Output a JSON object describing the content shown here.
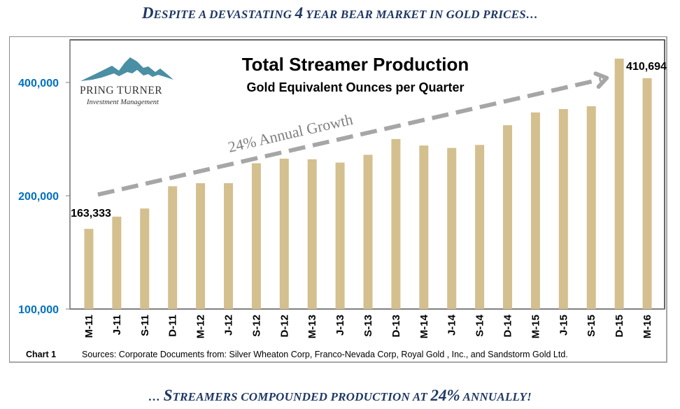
{
  "headlines": {
    "top": {
      "parts": [
        {
          "text": "D",
          "cls": "big"
        },
        {
          "text": "ESPITE A DEVASTATING ",
          "cls": "sc"
        },
        {
          "text": "4",
          "cls": "big"
        },
        {
          "text": " YEAR BEAR MARKET IN GOLD PRICES…",
          "cls": "sc"
        }
      ]
    },
    "bottom": {
      "parts": [
        {
          "text": "… ",
          "cls": "sc"
        },
        {
          "text": "S",
          "cls": "big"
        },
        {
          "text": "TREAMERS COMPOUNDED PRODUCTION AT ",
          "cls": "sc"
        },
        {
          "text": "24%",
          "cls": "big"
        },
        {
          "text": " ANNUALLY!",
          "cls": "sc"
        }
      ]
    }
  },
  "logo": {
    "name": "PRING TURNER",
    "subtitle": "Investment Management",
    "color": "#4a8fa3"
  },
  "footer": {
    "chart_label": "Chart 1",
    "sources": "Sources: Corporate Documents from: Silver Wheaton Corp,  Franco-Nevada Corp,  Royal Gold , Inc.,  and Sandstorm Gold Ltd."
  },
  "chart_data": {
    "type": "bar",
    "title": "Total Streamer Production",
    "subtitle": "Gold Equivalent Ounces per Quarter",
    "xlabel": "",
    "ylabel": "",
    "yscale": "log",
    "ylim": [
      100000,
      480000
    ],
    "yticks": [
      100000,
      200000,
      400000
    ],
    "ytick_labels": [
      "100,000",
      "200,000",
      "400,000"
    ],
    "grid": false,
    "legend": "none",
    "categories": [
      "M-11",
      "J-11",
      "S-11",
      "D-11",
      "M-12",
      "J-12",
      "S-12",
      "D-12",
      "M-13",
      "J-13",
      "S-13",
      "D-13",
      "M-14",
      "J-14",
      "S-14",
      "D-14",
      "M-15",
      "J-15",
      "S-15",
      "D-15",
      "M-16"
    ],
    "values": [
      163333,
      176000,
      185000,
      212000,
      216000,
      216000,
      244000,
      251000,
      250000,
      245000,
      257000,
      283000,
      272000,
      268000,
      273000,
      308000,
      333000,
      340000,
      346000,
      463000,
      410694
    ],
    "bar_color": "#d4bf8f",
    "data_labels": [
      {
        "category": "M-11",
        "text": "163,333"
      },
      {
        "category": "M-16",
        "text": "410,694"
      }
    ],
    "annotations": [
      {
        "type": "trend-arrow",
        "text": "24% Annual Growth",
        "from": {
          "category": "M-11",
          "value": 198000
        },
        "to": {
          "category": "S-15",
          "value": 448000
        },
        "style": "dashed",
        "color": "#a6a6a6"
      }
    ]
  }
}
